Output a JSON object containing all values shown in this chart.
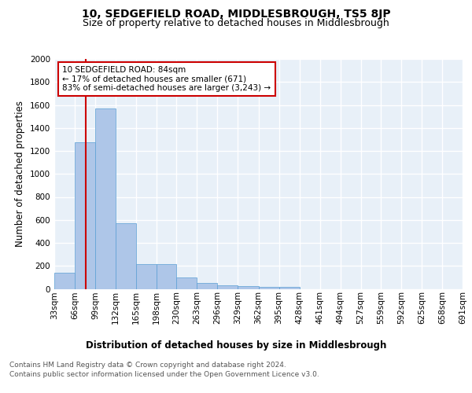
{
  "title": "10, SEDGEFIELD ROAD, MIDDLESBROUGH, TS5 8JP",
  "subtitle": "Size of property relative to detached houses in Middlesbrough",
  "xlabel": "Distribution of detached houses by size in Middlesbrough",
  "ylabel": "Number of detached properties",
  "footer_line1": "Contains HM Land Registry data © Crown copyright and database right 2024.",
  "footer_line2": "Contains public sector information licensed under the Open Government Licence v3.0.",
  "bin_edges": [
    33,
    66,
    99,
    132,
    165,
    198,
    230,
    263,
    296,
    329,
    362,
    395,
    428,
    461,
    494,
    527,
    559,
    592,
    625,
    658,
    691
  ],
  "bar_heights": [
    140,
    1275,
    1570,
    570,
    215,
    215,
    100,
    50,
    30,
    25,
    20,
    20,
    0,
    0,
    0,
    0,
    0,
    0,
    0,
    0
  ],
  "bar_color": "#aec6e8",
  "bar_edge_color": "#5a9fd4",
  "property_size": 84,
  "vline_color": "#cc0000",
  "annotation_text_line1": "10 SEDGEFIELD ROAD: 84sqm",
  "annotation_text_line2": "← 17% of detached houses are smaller (671)",
  "annotation_text_line3": "83% of semi-detached houses are larger (3,243) →",
  "annotation_box_color": "#cc0000",
  "ylim": [
    0,
    2000
  ],
  "background_color": "#e8f0f8",
  "grid_color": "#ffffff",
  "title_fontsize": 10,
  "subtitle_fontsize": 9,
  "axis_label_fontsize": 8.5,
  "tick_fontsize": 7.5,
  "annotation_fontsize": 7.5,
  "footer_fontsize": 6.5
}
